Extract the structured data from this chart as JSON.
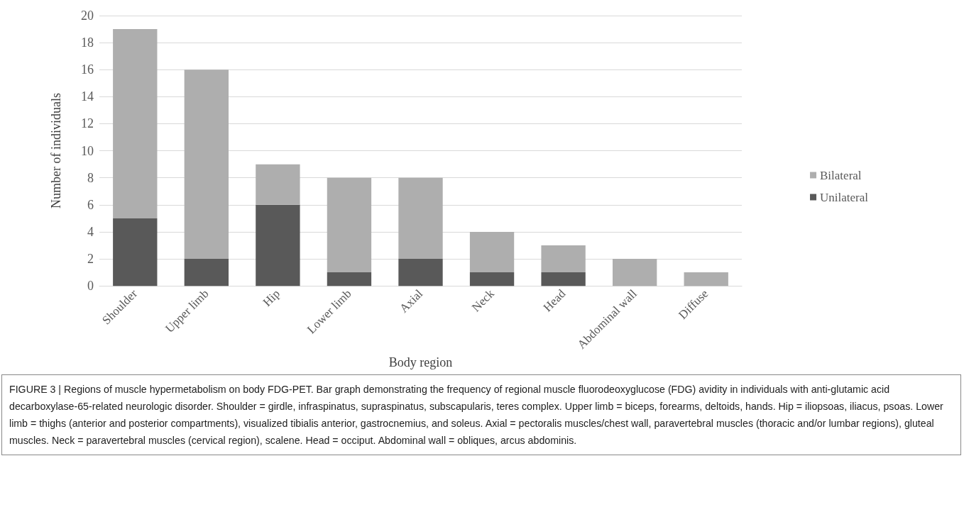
{
  "chart_data": {
    "type": "bar",
    "stacked": true,
    "xlabel": "Body region",
    "ylabel": "Number of individuals",
    "categories": [
      "Shoulder",
      "Upper limb",
      "Hip",
      "Lower limb",
      "Axial",
      "Neck",
      "Head",
      "Abdominal wall",
      "Diffuse"
    ],
    "series": [
      {
        "name": "Unilateral",
        "color": "#595959",
        "values": [
          5,
          2,
          6,
          1,
          2,
          1,
          1,
          0,
          0
        ]
      },
      {
        "name": "Bilateral",
        "color": "#aeaeae",
        "values": [
          14,
          14,
          3,
          7,
          6,
          3,
          2,
          2,
          1
        ]
      }
    ],
    "ylim": [
      0,
      20
    ],
    "yticks": [
      0,
      2,
      4,
      6,
      8,
      10,
      12,
      14,
      16,
      18,
      20
    ],
    "grid": "y",
    "legend": "right",
    "annotations": [
      "FIGURE 3 | Regions of muscle hypermetabolism on body FDG-PET. Bar graph demonstrating the frequency of regional muscle fluorodeoxyglucose (FDG) avidity in individuals with anti-glutamic acid decarboxylase-65-related neurologic disorder. Shoulder = girdle, infraspinatus, supraspinatus, subscapularis, teres complex. Upper limb = biceps, forearms, deltoids, hands. Hip = iliopsoas, iliacus, psoas. Lower limb = thighs (anterior and posterior compartments), visualized tibialis anterior, gastrocnemius, and soleus. Axial = pectoralis muscles/chest wall, paravertebral muscles (thoracic and/or lumbar regions), gluteal muscles. Neck = paravertebral muscles (cervical region), scalene. Head = occiput. Abdominal wall = obliques, arcus abdominis."
    ]
  }
}
